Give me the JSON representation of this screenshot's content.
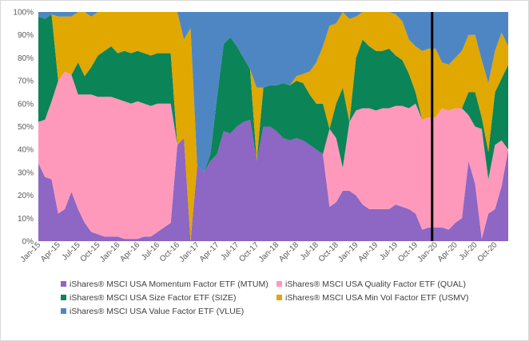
{
  "chart_data": {
    "type": "area",
    "stacked": true,
    "normalized": true,
    "x": [
      "Jan-15",
      "Feb-15",
      "Mar-15",
      "Apr-15",
      "May-15",
      "Jun-15",
      "Jul-15",
      "Aug-15",
      "Sep-15",
      "Oct-15",
      "Nov-15",
      "Dec-15",
      "Jan-16",
      "Feb-16",
      "Mar-16",
      "Apr-16",
      "May-16",
      "Jun-16",
      "Jul-16",
      "Aug-16",
      "Sep-16",
      "Oct-16",
      "Nov-16",
      "Dec-16",
      "Jan-17",
      "Feb-17",
      "Mar-17",
      "Apr-17",
      "May-17",
      "Jun-17",
      "Jul-17",
      "Aug-17",
      "Sep-17",
      "Oct-17",
      "Nov-17",
      "Dec-17",
      "Jan-18",
      "Feb-18",
      "Mar-18",
      "Apr-18",
      "May-18",
      "Jun-18",
      "Jul-18",
      "Aug-18",
      "Sep-18",
      "Oct-18",
      "Nov-18",
      "Dec-18",
      "Jan-19",
      "Feb-19",
      "Mar-19",
      "Apr-19",
      "May-19",
      "Jun-19",
      "Jul-19",
      "Aug-19",
      "Sep-19",
      "Oct-19",
      "Nov-19",
      "Dec-19",
      "Jan-20",
      "Feb-20",
      "Mar-20",
      "Apr-20",
      "May-20",
      "Jun-20",
      "Jul-20",
      "Aug-20",
      "Sep-20",
      "Oct-20",
      "Nov-20",
      "Dec-20"
    ],
    "x_tick_labels": [
      "Jan-15",
      "Apr-15",
      "Jul-15",
      "Oct-15",
      "Jan-16",
      "Apr-16",
      "Jul-16",
      "Oct-16",
      "Jan-17",
      "Apr-17",
      "Jul-17",
      "Oct-17",
      "Jan-18",
      "Apr-18",
      "Jul-18",
      "Oct-18",
      "Jan-19",
      "Apr-19",
      "Jul-19",
      "Oct-19",
      "Jan-20",
      "Apr-20",
      "Jul-20",
      "Oct-20"
    ],
    "y_tick_labels": [
      "0%",
      "10%",
      "20%",
      "30%",
      "40%",
      "50%",
      "60%",
      "70%",
      "80%",
      "90%",
      "100%"
    ],
    "ylim": [
      0,
      100
    ],
    "grid": false,
    "legend_position": "bottom",
    "vertical_marker": {
      "x": "Dec-19",
      "color": "#000000"
    },
    "series": [
      {
        "name": "iShares® MSCI USA Momentum Factor ETF (MTUM)",
        "color": "#8e66c4",
        "values": [
          34,
          28,
          27,
          12,
          14,
          22,
          14,
          8,
          4,
          3,
          2,
          2,
          2,
          1,
          1,
          1,
          2,
          2,
          4,
          6,
          8,
          42,
          45,
          0,
          33,
          30,
          35,
          38,
          48,
          47,
          50,
          52,
          53,
          35,
          50,
          50,
          48,
          45,
          44,
          45,
          44,
          42,
          40,
          38,
          15,
          17,
          22,
          22,
          20,
          16,
          14,
          14,
          14,
          14,
          16,
          15,
          14,
          12,
          5,
          6,
          6,
          6,
          5,
          8,
          10,
          35,
          25,
          1,
          12,
          14,
          24,
          40
        ]
      },
      {
        "name": "iShares® MSCI USA Quality Factor ETF (QUAL)",
        "color": "#ff99bb",
        "values": [
          18,
          25,
          34,
          58,
          60,
          52,
          50,
          56,
          60,
          60,
          61,
          61,
          60,
          60,
          59,
          60,
          58,
          57,
          56,
          54,
          52,
          0,
          0,
          0,
          0,
          0,
          0,
          0,
          0,
          0,
          0,
          0,
          0,
          0,
          0,
          0,
          0,
          0,
          0,
          0,
          0,
          0,
          0,
          0,
          34,
          28,
          10,
          30,
          37,
          42,
          44,
          43,
          44,
          44,
          43,
          44,
          44,
          48,
          48,
          48,
          48,
          52,
          52,
          50,
          48,
          20,
          25,
          48,
          15,
          28,
          20,
          0
        ]
      },
      {
        "name": "iShares® MSCI USA Size Factor ETF (SIZE)",
        "color": "#0b8457",
        "values": [
          46,
          44,
          38,
          0,
          0,
          0,
          14,
          8,
          12,
          18,
          20,
          22,
          20,
          22,
          22,
          22,
          22,
          22,
          22,
          22,
          22,
          0,
          0,
          0,
          0,
          0,
          3,
          25,
          38,
          42,
          35,
          28,
          22,
          0,
          17,
          18,
          20,
          24,
          24,
          25,
          25,
          22,
          20,
          22,
          0,
          15,
          35,
          0,
          23,
          30,
          27,
          26,
          25,
          26,
          22,
          20,
          15,
          5,
          0,
          0,
          0,
          0,
          0,
          0,
          0,
          10,
          15,
          5,
          12,
          23,
          27,
          37
        ]
      },
      {
        "name": "iShares® MSCI USA Min Vol Factor ETF (USMV)",
        "color": "#e0a800",
        "values": [
          0,
          0,
          0,
          28,
          24,
          26,
          22,
          28,
          22,
          19,
          17,
          15,
          18,
          17,
          18,
          17,
          18,
          19,
          18,
          18,
          18,
          58,
          43,
          93,
          0,
          0,
          0,
          0,
          0,
          0,
          0,
          0,
          0,
          32,
          0,
          0,
          0,
          0,
          0,
          2,
          4,
          10,
          18,
          25,
          45,
          35,
          33,
          45,
          18,
          12,
          15,
          17,
          17,
          16,
          18,
          17,
          15,
          20,
          30,
          30,
          30,
          20,
          20,
          22,
          25,
          25,
          25,
          25,
          30,
          18,
          20,
          8
        ]
      },
      {
        "name": "iShares® MSCI USA Value Factor ETF (VLUE)",
        "color": "#4e86c4",
        "values": [
          2,
          3,
          1,
          2,
          2,
          2,
          0,
          0,
          2,
          0,
          0,
          0,
          0,
          0,
          0,
          0,
          0,
          0,
          0,
          0,
          0,
          0,
          12,
          7,
          67,
          70,
          62,
          37,
          14,
          11,
          15,
          20,
          25,
          33,
          33,
          32,
          32,
          31,
          32,
          28,
          27,
          26,
          22,
          15,
          6,
          5,
          0,
          3,
          2,
          0,
          0,
          0,
          0,
          0,
          1,
          4,
          12,
          15,
          17,
          16,
          16,
          22,
          23,
          20,
          17,
          10,
          10,
          21,
          31,
          17,
          9,
          15
        ]
      }
    ]
  }
}
